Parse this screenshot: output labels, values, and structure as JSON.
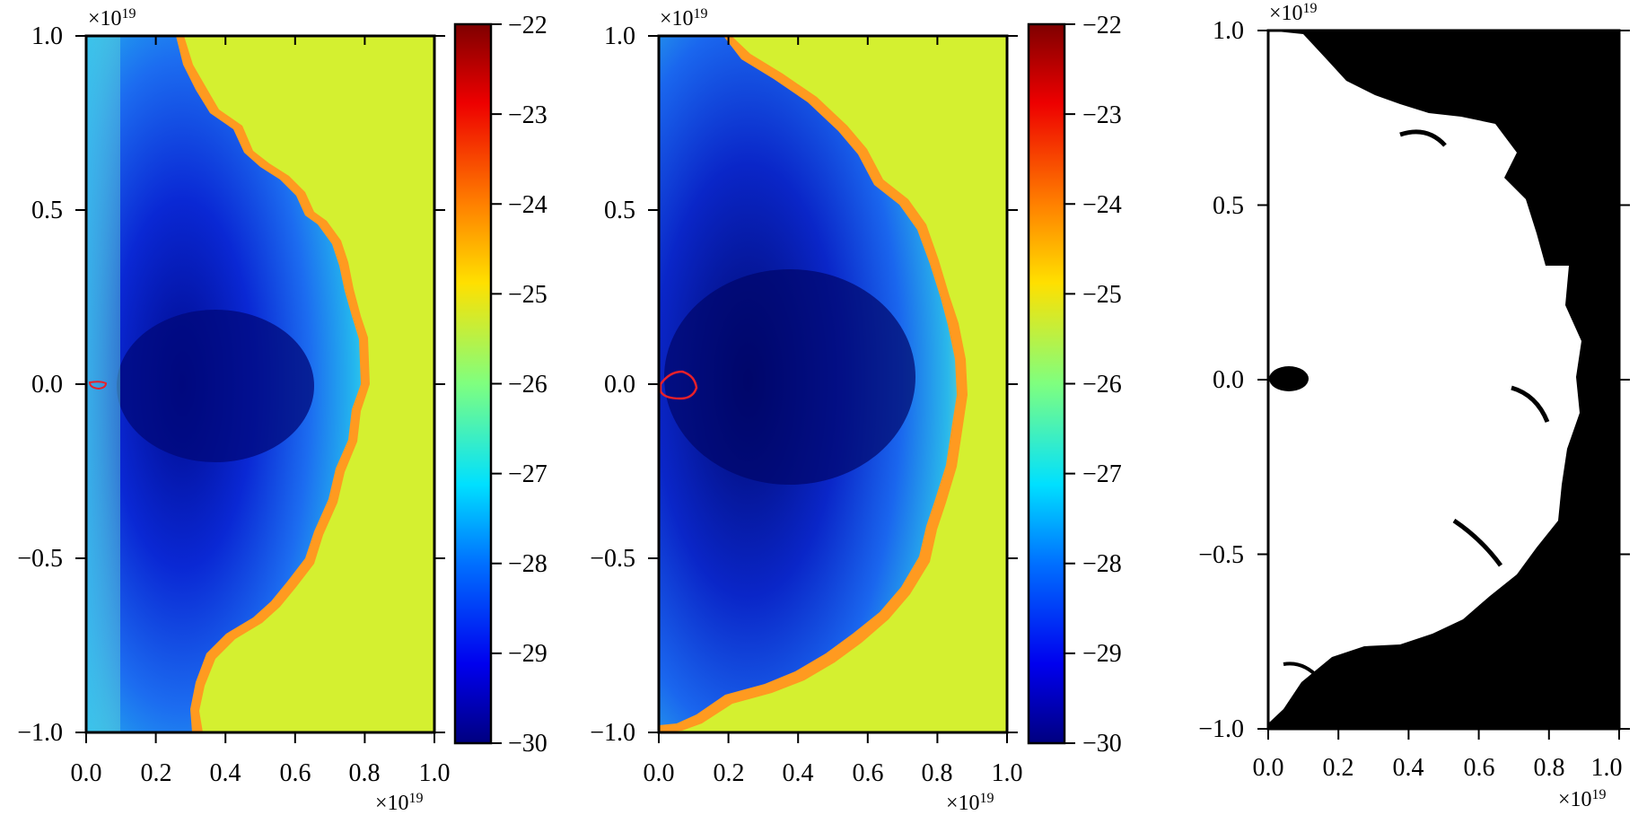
{
  "chart_data": [
    {
      "type": "heatmap",
      "panel": "left",
      "title": "",
      "xlabel": "",
      "ylabel": "",
      "xlim": [
        0.0,
        1.0
      ],
      "ylim": [
        -1.0,
        1.0
      ],
      "x_ticks": [
        "0.0",
        "0.2",
        "0.4",
        "0.6",
        "0.8",
        "1.0"
      ],
      "y_ticks": [
        "1.0",
        "0.5",
        "0.0",
        "−0.5",
        "−1.0"
      ],
      "x_multiplier": {
        "base": "×10",
        "exp": "19"
      },
      "y_multiplier": {
        "base": "×10",
        "exp": "19"
      },
      "colormap": "jet",
      "color_range": [
        -30,
        -22
      ],
      "colorbar_ticks": [
        "−22",
        "−23",
        "−24",
        "−25",
        "−26",
        "−27",
        "−28",
        "−29",
        "−30"
      ],
      "background_color": "#d4f030",
      "front_max_x": 0.86,
      "contour_color": "#e8202a",
      "contour_center": [
        0.03,
        0.0
      ]
    },
    {
      "type": "heatmap",
      "panel": "middle",
      "title": "",
      "xlabel": "",
      "ylabel": "",
      "xlim": [
        0.0,
        1.0
      ],
      "ylim": [
        -1.0,
        1.0
      ],
      "x_ticks": [
        "0.0",
        "0.2",
        "0.4",
        "0.6",
        "0.8",
        "1.0"
      ],
      "y_ticks": [
        "1.0",
        "0.5",
        "0.0",
        "−0.5",
        "−1.0"
      ],
      "x_multiplier": {
        "base": "×10",
        "exp": "19"
      },
      "y_multiplier": {
        "base": "×10",
        "exp": "19"
      },
      "colormap": "jet",
      "color_range": [
        -30,
        -22
      ],
      "colorbar_ticks": [
        "−22",
        "−23",
        "−24",
        "−25",
        "−26",
        "−27",
        "−28",
        "−29",
        "−30"
      ],
      "background_color": "#d4f030",
      "front_max_x": 0.9,
      "contour_color": "#e8202a",
      "contour_center": [
        0.05,
        0.0
      ]
    },
    {
      "type": "heatmap",
      "panel": "right",
      "title": "",
      "xlabel": "",
      "ylabel": "",
      "xlim": [
        0.0,
        1.0
      ],
      "ylim": [
        -1.0,
        1.0
      ],
      "x_ticks": [
        "0.0",
        "0.2",
        "0.4",
        "0.6",
        "0.8",
        "1.0"
      ],
      "y_ticks": [
        "1.0",
        "0.5",
        "0.0",
        "−0.5",
        "−1.0"
      ],
      "x_multiplier": {
        "base": "×10",
        "exp": "19"
      },
      "y_multiplier": {
        "base": "×10",
        "exp": "19"
      },
      "colormap": "binary",
      "region_color": "#ffffff",
      "background_color": "#000000",
      "front_max_x": 0.9,
      "blob_center": [
        0.06,
        0.0
      ]
    }
  ]
}
